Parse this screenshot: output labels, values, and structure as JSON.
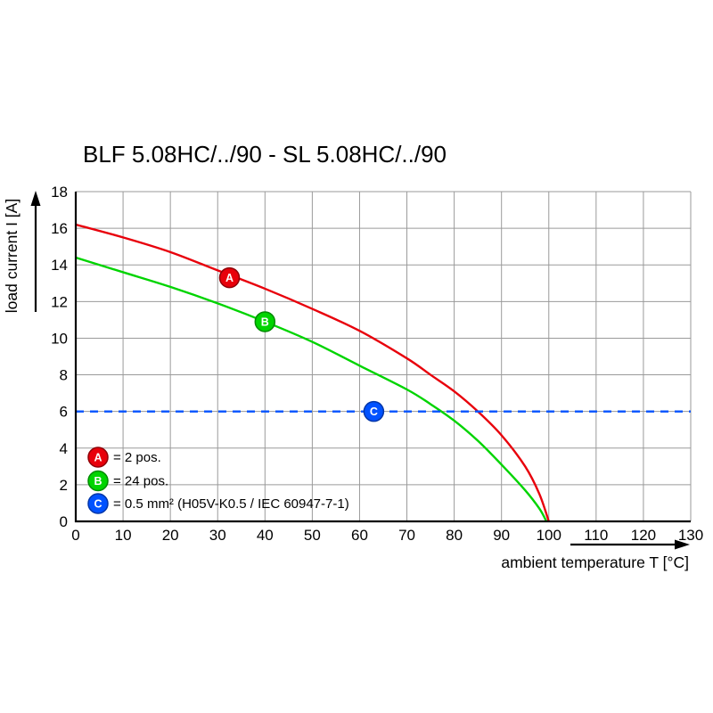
{
  "page": {
    "background": "#ffffff"
  },
  "chart_data": {
    "type": "line",
    "title": "BLF 5.08HC/../90 - SL 5.08HC/../90",
    "xlabel": "ambient temperature T [°C]",
    "ylabel": "load current I [A]",
    "xlim": [
      0,
      130
    ],
    "ylim": [
      0,
      18
    ],
    "xticks": [
      0,
      10,
      20,
      30,
      40,
      50,
      60,
      70,
      80,
      90,
      100,
      110,
      120,
      130
    ],
    "yticks": [
      0,
      2,
      4,
      6,
      8,
      10,
      12,
      14,
      16,
      18
    ],
    "grid": true,
    "grid_color": "#9a9a9a",
    "axis_color": "#000000",
    "legend_position": "bottom-left-inside",
    "series": [
      {
        "name": "A",
        "legend_label": "= 2 pos.",
        "color": "#e8000b",
        "edge_color": "#8f0007",
        "style": "solid",
        "x": [
          0,
          10,
          20,
          30,
          40,
          50,
          60,
          70,
          75,
          80,
          85,
          90,
          95,
          98,
          100
        ],
        "y": [
          16.2,
          15.5,
          14.7,
          13.7,
          12.7,
          11.6,
          10.4,
          8.9,
          8.0,
          7.1,
          6.0,
          4.7,
          3.0,
          1.5,
          0
        ]
      },
      {
        "name": "B",
        "legend_label": "= 24 pos.",
        "color": "#00d400",
        "edge_color": "#008a00",
        "style": "solid",
        "x": [
          0,
          10,
          20,
          30,
          40,
          50,
          60,
          70,
          75,
          80,
          85,
          90,
          95,
          98,
          99.5
        ],
        "y": [
          14.4,
          13.6,
          12.8,
          11.9,
          10.9,
          9.8,
          8.5,
          7.2,
          6.4,
          5.5,
          4.4,
          3.1,
          1.7,
          0.7,
          0
        ]
      },
      {
        "name": "C",
        "legend_label": "= 0.5 mm² (H05V-K0.5 / IEC 60947-7-1)",
        "color": "#0052ff",
        "edge_color": "#0035a8",
        "style": "dashed",
        "x": [
          0,
          130
        ],
        "y": [
          6,
          6
        ]
      }
    ],
    "markers": [
      {
        "series": "A",
        "x": 32.5,
        "y": 13.3
      },
      {
        "series": "B",
        "x": 40,
        "y": 10.9
      },
      {
        "series": "C",
        "x": 63,
        "y": 6
      }
    ]
  }
}
